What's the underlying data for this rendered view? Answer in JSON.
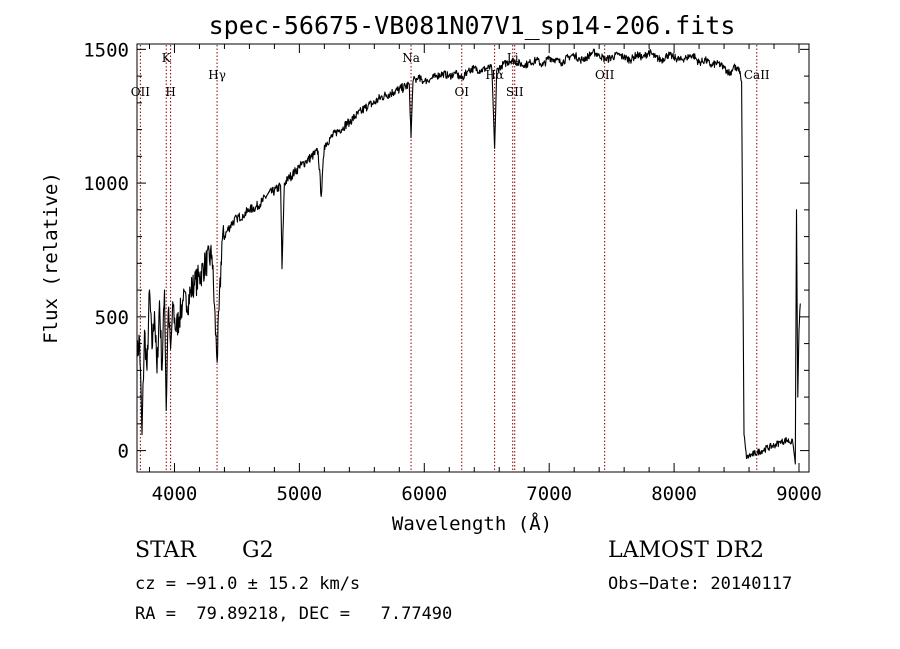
{
  "chart_data": {
    "type": "line",
    "title": "spec-56675-VB081N07V1_sp14-206.fits",
    "xlabel": "Wavelength (Å)",
    "ylabel": "Flux (relative)",
    "xlim": [
      3700,
      9080
    ],
    "ylim": [
      -80,
      1520
    ],
    "x_ticks": [
      4000,
      5000,
      6000,
      7000,
      8000,
      9000
    ],
    "y_ticks": [
      0,
      500,
      1000,
      1500
    ],
    "grid": false,
    "line_color": "#000000",
    "marker_color": "#8b0000",
    "lines": [
      {
        "label": "OII",
        "wavelength": 3727,
        "label_row": "low"
      },
      {
        "label": "K",
        "wavelength": 3934,
        "label_row": "top"
      },
      {
        "label": "H",
        "wavelength": 3969,
        "label_row": "low"
      },
      {
        "label": "Hγ",
        "wavelength": 4341,
        "label_row": "mid"
      },
      {
        "label": "Na",
        "wavelength": 5894,
        "label_row": "top"
      },
      {
        "label": "OI",
        "wavelength": 6300,
        "label_row": "low"
      },
      {
        "label": "Hα",
        "wavelength": 6563,
        "label_row": "mid"
      },
      {
        "label": "Li",
        "wavelength": 6708,
        "label_row": "top"
      },
      {
        "label": "SII",
        "wavelength": 6724,
        "label_row": "low"
      },
      {
        "label": "OII",
        "wavelength": 7444,
        "label_row": "mid"
      },
      {
        "label": "CaII",
        "wavelength": 8662,
        "label_row": "mid"
      }
    ],
    "series": [
      {
        "x": [
          3700,
          3720,
          3740,
          3760,
          3780,
          3800,
          3820,
          3840,
          3860,
          3880,
          3900,
          3920,
          3934,
          3950,
          3969,
          3990,
          4010,
          4040,
          4070,
          4100,
          4130,
          4160,
          4200,
          4250,
          4300,
          4341,
          4380,
          4420,
          4460,
          4500,
          4550,
          4600,
          4650,
          4700,
          4750,
          4800,
          4850,
          4861,
          4880,
          4920,
          4960,
          5000,
          5050,
          5100,
          5150,
          5175,
          5200,
          5250,
          5300,
          5350,
          5400,
          5450,
          5500,
          5550,
          5600,
          5650,
          5700,
          5750,
          5800,
          5850,
          5880,
          5894,
          5910,
          5950,
          6000,
          6050,
          6100,
          6150,
          6200,
          6250,
          6300,
          6350,
          6400,
          6450,
          6500,
          6540,
          6563,
          6580,
          6620,
          6660,
          6700,
          6750,
          6800,
          6850,
          6900,
          6950,
          7000,
          7050,
          7100,
          7150,
          7200,
          7250,
          7300,
          7350,
          7400,
          7450,
          7500,
          7550,
          7600,
          7650,
          7700,
          7750,
          7800,
          7850,
          7900,
          7950,
          8000,
          8050,
          8100,
          8150,
          8200,
          8250,
          8300,
          8350,
          8400,
          8450,
          8480,
          8500,
          8520,
          8540,
          8550,
          8560,
          8580,
          8600,
          8650,
          8700,
          8750,
          8800,
          8850,
          8900,
          8950,
          8970,
          8980,
          8990,
          9000,
          9010
        ],
        "y": [
          350,
          420,
          60,
          450,
          300,
          600,
          380,
          520,
          290,
          560,
          300,
          600,
          150,
          520,
          380,
          540,
          450,
          500,
          560,
          540,
          600,
          620,
          650,
          700,
          730,
          330,
          780,
          820,
          850,
          870,
          880,
          900,
          910,
          930,
          960,
          970,
          990,
          680,
          1000,
          1020,
          1040,
          1060,
          1080,
          1100,
          1120,
          950,
          1140,
          1170,
          1190,
          1210,
          1230,
          1250,
          1270,
          1290,
          1300,
          1320,
          1330,
          1340,
          1350,
          1360,
          1370,
          1170,
          1380,
          1390,
          1380,
          1390,
          1400,
          1410,
          1400,
          1410,
          1390,
          1420,
          1430,
          1420,
          1430,
          1430,
          1130,
          1420,
          1440,
          1450,
          1460,
          1450,
          1440,
          1450,
          1460,
          1440,
          1470,
          1460,
          1450,
          1470,
          1480,
          1460,
          1470,
          1490,
          1480,
          1460,
          1470,
          1480,
          1470,
          1460,
          1480,
          1470,
          1490,
          1470,
          1460,
          1480,
          1470,
          1460,
          1470,
          1480,
          1450,
          1460,
          1440,
          1450,
          1430,
          1410,
          1440,
          1420,
          1430,
          1380,
          700,
          60,
          -30,
          -20,
          -10,
          0,
          10,
          20,
          30,
          40,
          30,
          -50,
          900,
          200,
          450,
          550
        ]
      }
    ]
  },
  "info": {
    "object_class": "STAR",
    "subclass": "G2",
    "survey": "LAMOST DR2",
    "redshift_line": "cz = −91.0 ± 15.2 km/s",
    "obs_date_line": "Obs−Date: 20140117",
    "coords_line": "RA =  79.89218, DEC =   7.77490"
  }
}
